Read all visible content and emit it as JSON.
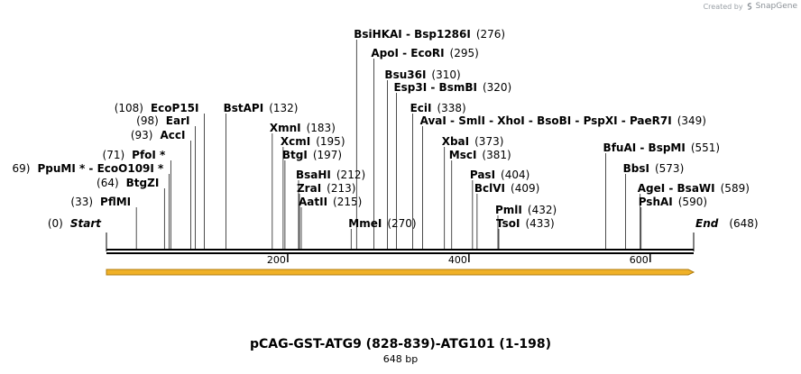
{
  "credit": {
    "prefix": "Created by",
    "brand": "SnapGene",
    "logo_icon": "snapgene-logo-icon"
  },
  "title": "pCAG-GST-ATG9 (828-839)-ATG101 (1-198)",
  "subtitle": "648 bp",
  "axis": {
    "ticks": [
      {
        "pos": 200,
        "label": "200"
      },
      {
        "pos": 400,
        "label": "400"
      },
      {
        "pos": 600,
        "label": "600"
      }
    ]
  },
  "terminals": {
    "start": {
      "name": "Start",
      "pos_text": "(0)"
    },
    "end": {
      "name": "End",
      "pos_text": "(648)"
    }
  },
  "sites": [
    {
      "name": "PflMI",
      "pos": 33,
      "pos_text": "(33)",
      "side": "left"
    },
    {
      "name": "BtgZI",
      "pos": 64,
      "pos_text": "(64)",
      "side": "left"
    },
    {
      "name": "PpuMI *  -  EcoO109I *",
      "pos": 69,
      "pos_text": "69)",
      "side": "left"
    },
    {
      "name": "PfoI *",
      "pos": 71,
      "pos_text": "(71)",
      "side": "left"
    },
    {
      "name": "AccI",
      "pos": 93,
      "pos_text": "(93)",
      "side": "left"
    },
    {
      "name": "EarI",
      "pos": 98,
      "pos_text": "(98)",
      "side": "left"
    },
    {
      "name": "EcoP15I",
      "pos": 108,
      "pos_text": "(108)",
      "side": "left"
    },
    {
      "name": "BstAPI",
      "pos": 132,
      "pos_text": "(132)",
      "side": "right"
    },
    {
      "name": "XmnI",
      "pos": 183,
      "pos_text": "(183)",
      "side": "right"
    },
    {
      "name": "XcmI",
      "pos": 195,
      "pos_text": "(195)",
      "side": "right"
    },
    {
      "name": "BtgI",
      "pos": 197,
      "pos_text": "(197)",
      "side": "right"
    },
    {
      "name": "BsaHI",
      "pos": 212,
      "pos_text": "(212)",
      "side": "right"
    },
    {
      "name": "ZraI",
      "pos": 213,
      "pos_text": "(213)",
      "side": "right"
    },
    {
      "name": "AatII",
      "pos": 215,
      "pos_text": "(215)",
      "side": "right"
    },
    {
      "name": "MmeI",
      "pos": 270,
      "pos_text": "(270)",
      "side": "right"
    },
    {
      "name": "BsiHKAI  -  Bsp1286I",
      "pos": 276,
      "pos_text": "(276)",
      "side": "right"
    },
    {
      "name": "ApoI  -  EcoRI",
      "pos": 295,
      "pos_text": "(295)",
      "side": "right"
    },
    {
      "name": "Bsu36I",
      "pos": 310,
      "pos_text": "(310)",
      "side": "right"
    },
    {
      "name": "Esp3I  -  BsmBI",
      "pos": 320,
      "pos_text": "(320)",
      "side": "right"
    },
    {
      "name": "EciI",
      "pos": 338,
      "pos_text": "(338)",
      "side": "right"
    },
    {
      "name": "AvaI  -  SmlI  -  XhoI  -  BsoBI  -  PspXI  -  PaeR7I",
      "pos": 349,
      "pos_text": "(349)",
      "side": "right"
    },
    {
      "name": "XbaI",
      "pos": 373,
      "pos_text": "(373)",
      "side": "right"
    },
    {
      "name": "MscI",
      "pos": 381,
      "pos_text": "(381)",
      "side": "right"
    },
    {
      "name": "PasI",
      "pos": 404,
      "pos_text": "(404)",
      "side": "right"
    },
    {
      "name": "BclVI",
      "pos": 409,
      "pos_text": "(409)",
      "side": "right"
    },
    {
      "name": "PmlI",
      "pos": 432,
      "pos_text": "(432)",
      "side": "right"
    },
    {
      "name": "TsoI",
      "pos": 433,
      "pos_text": "(433)",
      "side": "right"
    },
    {
      "name": "BfuAI  -  BspMI",
      "pos": 551,
      "pos_text": "(551)",
      "side": "right"
    },
    {
      "name": "BbsI",
      "pos": 573,
      "pos_text": "(573)",
      "side": "right"
    },
    {
      "name": "AgeI  -  BsaWI",
      "pos": 589,
      "pos_text": "(589)",
      "side": "right"
    },
    {
      "name": "PshAI",
      "pos": 590,
      "pos_text": "(590)",
      "side": "right"
    }
  ],
  "feature": {
    "name": "insert-arrow",
    "color": "#f0b127",
    "edge_color": "#b07d10",
    "start": 0,
    "end": 648
  }
}
